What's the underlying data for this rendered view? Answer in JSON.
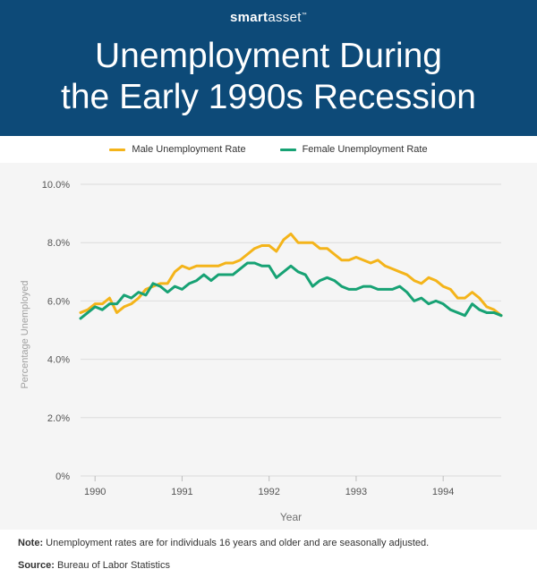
{
  "brand": {
    "name_bold": "smart",
    "name_regular": "asset",
    "mark": "™"
  },
  "title": {
    "line1": "Unemployment During",
    "line2": "the Early 1990s Recession"
  },
  "footer": {
    "note_label": "Note:",
    "note_text": " Unemployment rates are for individuals 16 years and older and are seasonally adjusted.",
    "source_label": "Source:",
    "source_text": " Bureau of Labor Statistics"
  },
  "colors": {
    "male": "#f4b41a",
    "female": "#17a274",
    "header": "#0d4a78"
  },
  "chart_data": {
    "type": "line",
    "title": "Unemployment During the Early 1990s Recession",
    "xlabel": "Year",
    "ylabel": "Percentage Unemployed",
    "ylim": [
      0,
      10
    ],
    "yticks": [
      0,
      2,
      4,
      6,
      8,
      10
    ],
    "ytick_labels": [
      "0%",
      "2.0%",
      "4.0%",
      "6.0%",
      "8.0%",
      "10.0%"
    ],
    "xticks": [
      0,
      12,
      24,
      36,
      48
    ],
    "xtick_labels": [
      "1990",
      "1991",
      "1992",
      "1993",
      "1994"
    ],
    "x_range": [
      -2,
      56
    ],
    "grid": true,
    "legend": "top-center",
    "series": [
      {
        "name": "Male Unemployment Rate",
        "color": "#f4b41a",
        "x": [
          -2,
          -1,
          0,
          1,
          2,
          3,
          4,
          5,
          6,
          7,
          8,
          9,
          10,
          11,
          12,
          13,
          14,
          15,
          16,
          17,
          18,
          19,
          20,
          21,
          22,
          23,
          24,
          25,
          26,
          27,
          28,
          29,
          30,
          31,
          32,
          33,
          34,
          35,
          36,
          37,
          38,
          39,
          40,
          41,
          42,
          43,
          44,
          45,
          46,
          47,
          48,
          49,
          50,
          51,
          52,
          53,
          54,
          55,
          56
        ],
        "values": [
          5.6,
          5.7,
          5.9,
          5.9,
          6.1,
          5.6,
          5.8,
          5.9,
          6.1,
          6.4,
          6.5,
          6.6,
          6.6,
          7.0,
          7.2,
          7.1,
          7.2,
          7.2,
          7.2,
          7.2,
          7.3,
          7.3,
          7.4,
          7.6,
          7.8,
          7.9,
          7.9,
          7.7,
          8.1,
          8.3,
          8.0,
          8.0,
          8.0,
          7.8,
          7.8,
          7.6,
          7.4,
          7.4,
          7.5,
          7.4,
          7.3,
          7.4,
          7.2,
          7.1,
          7.0,
          6.9,
          6.7,
          6.6,
          6.8,
          6.7,
          6.5,
          6.4,
          6.1,
          6.1,
          6.3,
          6.1,
          5.8,
          5.7,
          5.5
        ]
      },
      {
        "name": "Female Unemployment Rate",
        "color": "#17a274",
        "x": [
          -2,
          -1,
          0,
          1,
          2,
          3,
          4,
          5,
          6,
          7,
          8,
          9,
          10,
          11,
          12,
          13,
          14,
          15,
          16,
          17,
          18,
          19,
          20,
          21,
          22,
          23,
          24,
          25,
          26,
          27,
          28,
          29,
          30,
          31,
          32,
          33,
          34,
          35,
          36,
          37,
          38,
          39,
          40,
          41,
          42,
          43,
          44,
          45,
          46,
          47,
          48,
          49,
          50,
          51,
          52,
          53,
          54,
          55,
          56
        ],
        "values": [
          5.4,
          5.6,
          5.8,
          5.7,
          5.9,
          5.9,
          6.2,
          6.1,
          6.3,
          6.2,
          6.6,
          6.5,
          6.3,
          6.5,
          6.4,
          6.6,
          6.7,
          6.9,
          6.7,
          6.9,
          6.9,
          6.9,
          7.1,
          7.3,
          7.3,
          7.2,
          7.2,
          6.8,
          7.0,
          7.2,
          7.0,
          6.9,
          6.5,
          6.7,
          6.8,
          6.7,
          6.5,
          6.4,
          6.4,
          6.5,
          6.5,
          6.4,
          6.4,
          6.4,
          6.5,
          6.3,
          6.0,
          6.1,
          5.9,
          6.0,
          5.9,
          5.7,
          5.6,
          5.5,
          5.9,
          5.7,
          5.6,
          5.6,
          5.5
        ]
      }
    ]
  }
}
